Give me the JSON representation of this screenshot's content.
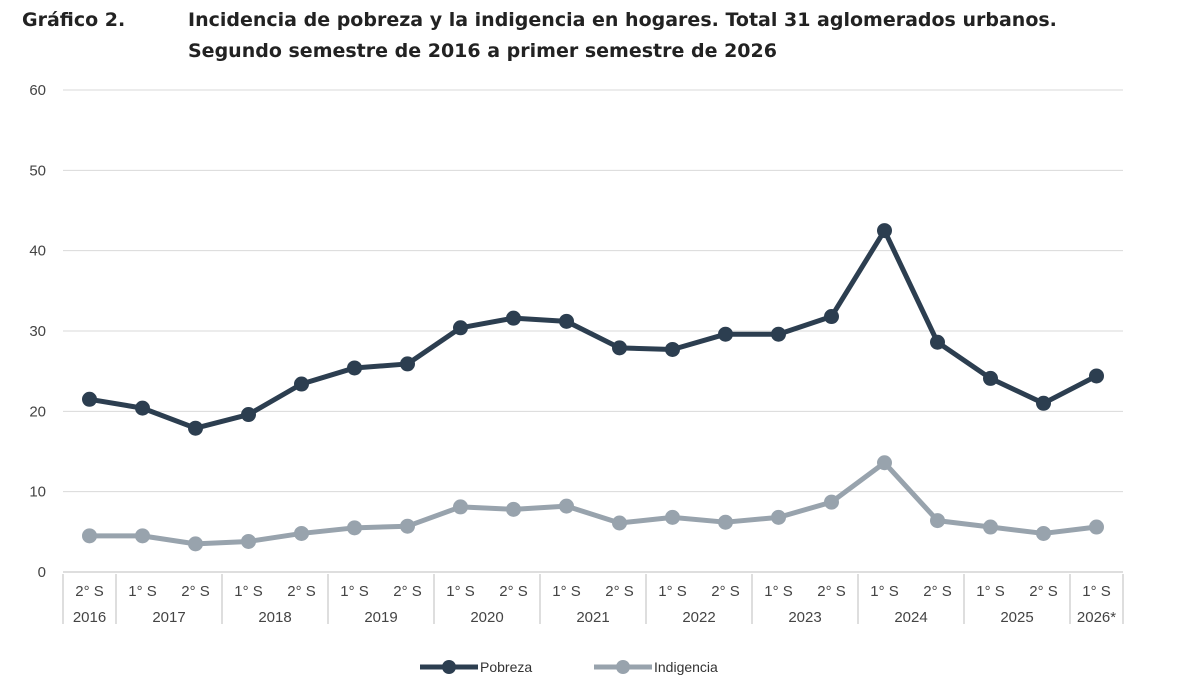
{
  "header": {
    "label": "Gráfico 2.",
    "title_line1": "Incidencia de pobreza y la indigencia en hogares. Total 31 aglomerados urbanos.",
    "title_line2": "Segundo semestre de 2016 a primer semestre de 2026"
  },
  "chart_data": {
    "type": "line",
    "title": "Incidencia de pobreza y la indigencia en hogares. Total 31 aglomerados urbanos. Segundo semestre de 2016 a primer semestre de 2026",
    "xlabel": "",
    "ylabel": "",
    "ylim": [
      0,
      60
    ],
    "yticks": [
      "0",
      "10",
      "20",
      "30",
      "40",
      "50",
      "60"
    ],
    "grid": true,
    "legend_position": "bottom",
    "categories": [
      "2° S",
      "1° S",
      "2° S",
      "1° S",
      "2° S",
      "1° S",
      "2° S",
      "1° S",
      "2° S",
      "1° S",
      "2° S",
      "1° S",
      "2° S",
      "1° S",
      "2° S",
      "1° S",
      "2° S",
      "1° S",
      "2° S",
      "1° S"
    ],
    "years": [
      {
        "label": "2016",
        "start": 0,
        "end": 0
      },
      {
        "label": "2017",
        "start": 1,
        "end": 2
      },
      {
        "label": "2018",
        "start": 3,
        "end": 4
      },
      {
        "label": "2019",
        "start": 5,
        "end": 6
      },
      {
        "label": "2020",
        "start": 7,
        "end": 8
      },
      {
        "label": "2021",
        "start": 9,
        "end": 10
      },
      {
        "label": "2022",
        "start": 11,
        "end": 12
      },
      {
        "label": "2023",
        "start": 13,
        "end": 14
      },
      {
        "label": "2024",
        "start": 15,
        "end": 16
      },
      {
        "label": "2025",
        "start": 17,
        "end": 18
      },
      {
        "label": "2026*",
        "start": 19,
        "end": 19
      }
    ],
    "series": [
      {
        "name": "Pobreza",
        "color": "#2c3e50",
        "values": [
          21.5,
          20.4,
          17.9,
          19.6,
          23.4,
          25.4,
          25.9,
          30.4,
          31.6,
          31.2,
          27.9,
          27.7,
          29.6,
          29.6,
          31.8,
          42.5,
          28.6,
          24.1,
          21.0,
          24.4
        ]
      },
      {
        "name": "Indigencia",
        "color": "#98a3ad",
        "values": [
          4.5,
          4.5,
          3.5,
          3.8,
          4.8,
          5.5,
          5.7,
          8.1,
          7.8,
          8.2,
          6.1,
          6.8,
          6.2,
          6.8,
          8.7,
          13.6,
          6.4,
          5.6,
          4.8,
          5.6
        ]
      }
    ]
  }
}
